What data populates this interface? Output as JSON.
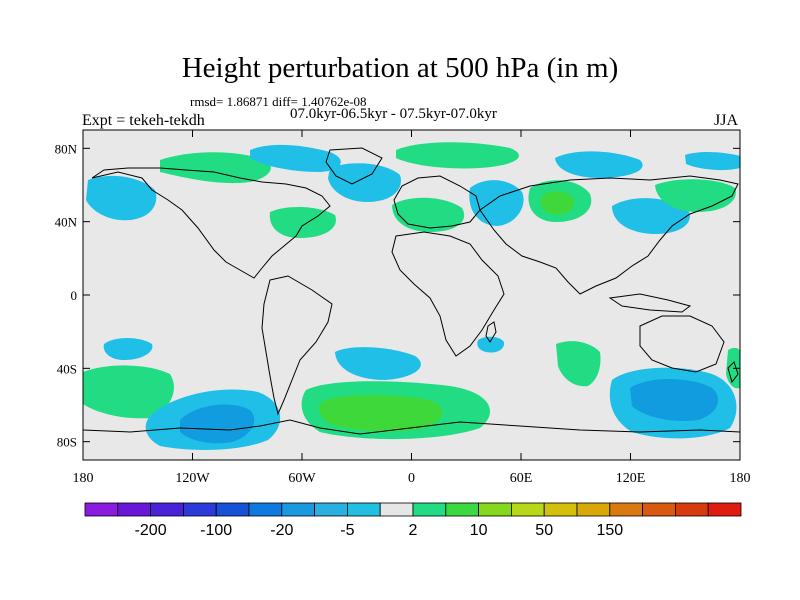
{
  "title": "Height perturbation at 500 hPa (in m)",
  "stats": "rmsd= 1.86871 diff= 1.40762e-08",
  "period": "07.0kyr-06.5kyr - 07.5kyr-07.0kyr",
  "expt": "Expt = tekeh-tekdh",
  "season": "JJA",
  "lat_labels": [
    {
      "lat": 80,
      "label": "80N"
    },
    {
      "lat": 40,
      "label": "40N"
    },
    {
      "lat": 0,
      "label": "0"
    },
    {
      "lat": -40,
      "label": "40S"
    },
    {
      "lat": -80,
      "label": "80S"
    }
  ],
  "lon_labels": [
    {
      "lon": -180,
      "label": "180"
    },
    {
      "lon": -120,
      "label": "120W"
    },
    {
      "lon": -60,
      "label": "60W"
    },
    {
      "lon": 0,
      "label": "0"
    },
    {
      "lon": 60,
      "label": "60E"
    },
    {
      "lon": 120,
      "label": "120E"
    },
    {
      "lon": 180,
      "label": "180"
    }
  ],
  "colorbar": {
    "colors": [
      "#8a1ce0",
      "#6a16d8",
      "#4a22d8",
      "#2b3ad8",
      "#1552d8",
      "#0e7ae0",
      "#1a98e0",
      "#2ab0e0",
      "#21c0e0",
      "#e6e6e6",
      "#22dc84",
      "#3cd840",
      "#86d81c",
      "#b6d818",
      "#d4c00c",
      "#d8a808",
      "#d87a10",
      "#d85a10",
      "#d83a10",
      "#e01c10"
    ],
    "labels": [
      {
        "after_box": 2,
        "text": "-200"
      },
      {
        "after_box": 4,
        "text": "-100"
      },
      {
        "after_box": 6,
        "text": "-20"
      },
      {
        "after_box": 8,
        "text": "-5"
      },
      {
        "after_box": 10,
        "text": "2"
      },
      {
        "after_box": 12,
        "text": "10"
      },
      {
        "after_box": 14,
        "text": "50"
      },
      {
        "after_box": 16,
        "text": "150"
      }
    ]
  },
  "anomaly_colors": {
    "neutral": "#e8e8e8",
    "neg_weak": "#20bfe8",
    "neg_mid": "#109cdf",
    "pos_weak": "#22dc84",
    "pos_mid": "#3fd83a"
  }
}
